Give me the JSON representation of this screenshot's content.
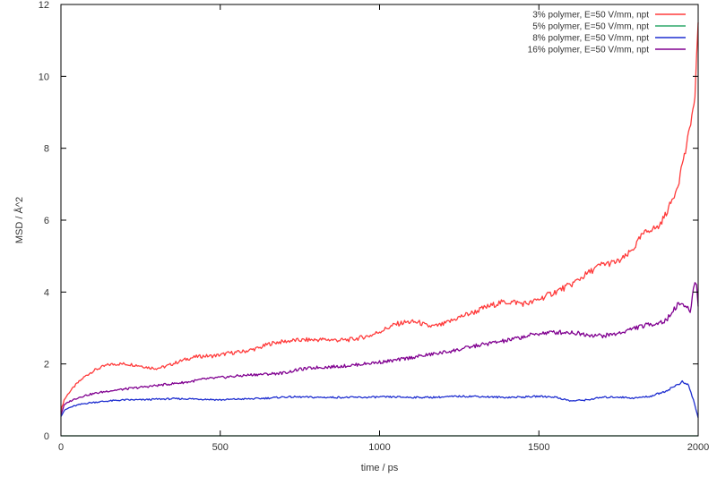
{
  "chart_data": {
    "type": "line",
    "title": "",
    "xlabel": "time / ps",
    "ylabel": "MSD / Å^2",
    "xlim": [
      0,
      2000
    ],
    "ylim": [
      0,
      12
    ],
    "xticks": [
      0,
      500,
      1000,
      1500,
      2000
    ],
    "yticks": [
      0,
      2,
      4,
      6,
      8,
      10,
      12
    ],
    "grid": false,
    "legend_position": "top-right",
    "series": [
      {
        "name": "3% polymer, E=50 V/mm, npt",
        "color": "#ff3b3b",
        "x": [
          0,
          10,
          25,
          50,
          75,
          100,
          125,
          150,
          175,
          200,
          225,
          250,
          275,
          300,
          325,
          350,
          375,
          400,
          425,
          450,
          475,
          500,
          525,
          550,
          575,
          600,
          625,
          650,
          675,
          700,
          725,
          750,
          775,
          800,
          825,
          850,
          875,
          900,
          925,
          950,
          975,
          1000,
          1025,
          1050,
          1075,
          1100,
          1125,
          1150,
          1175,
          1200,
          1225,
          1250,
          1275,
          1300,
          1325,
          1350,
          1375,
          1400,
          1425,
          1450,
          1475,
          1500,
          1525,
          1550,
          1575,
          1600,
          1625,
          1650,
          1675,
          1700,
          1725,
          1750,
          1775,
          1800,
          1825,
          1850,
          1875,
          1900,
          1925,
          1940,
          1950,
          1960,
          1970,
          1980,
          1990,
          1995,
          2000
        ],
        "y": [
          0.7,
          1.0,
          1.2,
          1.45,
          1.65,
          1.8,
          1.9,
          1.98,
          2.0,
          2.0,
          1.98,
          1.95,
          1.9,
          1.88,
          1.92,
          2.0,
          2.08,
          2.15,
          2.2,
          2.22,
          2.22,
          2.25,
          2.3,
          2.32,
          2.35,
          2.4,
          2.45,
          2.55,
          2.6,
          2.62,
          2.65,
          2.66,
          2.67,
          2.67,
          2.68,
          2.67,
          2.66,
          2.67,
          2.7,
          2.75,
          2.8,
          2.9,
          3.0,
          3.1,
          3.15,
          3.17,
          3.15,
          3.05,
          3.05,
          3.1,
          3.2,
          3.3,
          3.38,
          3.45,
          3.55,
          3.62,
          3.7,
          3.72,
          3.72,
          3.68,
          3.7,
          3.8,
          3.9,
          4.0,
          4.1,
          4.2,
          4.35,
          4.5,
          4.65,
          4.78,
          4.8,
          4.85,
          5.0,
          5.25,
          5.6,
          5.75,
          5.8,
          6.2,
          6.7,
          7.1,
          7.6,
          7.9,
          8.4,
          8.9,
          9.4,
          10.5,
          11.5
        ]
      },
      {
        "name": "5% polymer, E=50 V/mm, npt",
        "color": "#2ea86a",
        "x": [
          0,
          500,
          1000,
          1500,
          2000
        ],
        "y": [
          0,
          0,
          0,
          0,
          0
        ]
      },
      {
        "name": "8% polymer, E=50 V/mm, npt",
        "color": "#1f2fd0",
        "x": [
          0,
          10,
          25,
          50,
          75,
          100,
          150,
          200,
          250,
          300,
          350,
          400,
          450,
          500,
          550,
          600,
          650,
          700,
          750,
          800,
          850,
          900,
          950,
          1000,
          1050,
          1100,
          1150,
          1200,
          1250,
          1300,
          1350,
          1400,
          1450,
          1500,
          1550,
          1600,
          1650,
          1700,
          1750,
          1800,
          1850,
          1900,
          1930,
          1950,
          1970,
          1985,
          2000
        ],
        "y": [
          0.55,
          0.7,
          0.78,
          0.85,
          0.9,
          0.93,
          0.97,
          1.0,
          1.0,
          1.02,
          1.03,
          1.03,
          1.02,
          1.0,
          1.02,
          1.03,
          1.05,
          1.08,
          1.08,
          1.07,
          1.07,
          1.07,
          1.07,
          1.08,
          1.08,
          1.07,
          1.07,
          1.08,
          1.1,
          1.1,
          1.08,
          1.07,
          1.08,
          1.1,
          1.08,
          0.97,
          1.0,
          1.07,
          1.08,
          1.05,
          1.1,
          1.25,
          1.4,
          1.5,
          1.4,
          1.0,
          0.5
        ]
      },
      {
        "name": "16% polymer, E=50 V/mm, npt",
        "color": "#800090",
        "x": [
          0,
          10,
          25,
          50,
          75,
          100,
          150,
          200,
          250,
          300,
          350,
          400,
          450,
          500,
          550,
          600,
          650,
          700,
          750,
          800,
          850,
          900,
          950,
          1000,
          1050,
          1100,
          1150,
          1200,
          1250,
          1300,
          1350,
          1400,
          1450,
          1500,
          1550,
          1600,
          1650,
          1700,
          1750,
          1800,
          1850,
          1900,
          1925,
          1945,
          1960,
          1975,
          1985,
          1990,
          1995,
          2000
        ],
        "y": [
          0.6,
          0.85,
          0.95,
          1.05,
          1.12,
          1.17,
          1.25,
          1.3,
          1.35,
          1.4,
          1.45,
          1.5,
          1.58,
          1.62,
          1.66,
          1.7,
          1.72,
          1.75,
          1.85,
          1.9,
          1.92,
          1.95,
          2.0,
          2.05,
          2.1,
          2.18,
          2.25,
          2.32,
          2.4,
          2.5,
          2.58,
          2.65,
          2.75,
          2.85,
          2.88,
          2.88,
          2.82,
          2.78,
          2.85,
          3.0,
          3.1,
          3.2,
          3.55,
          3.7,
          3.6,
          3.45,
          4.1,
          4.25,
          4.2,
          3.6
        ]
      }
    ]
  }
}
